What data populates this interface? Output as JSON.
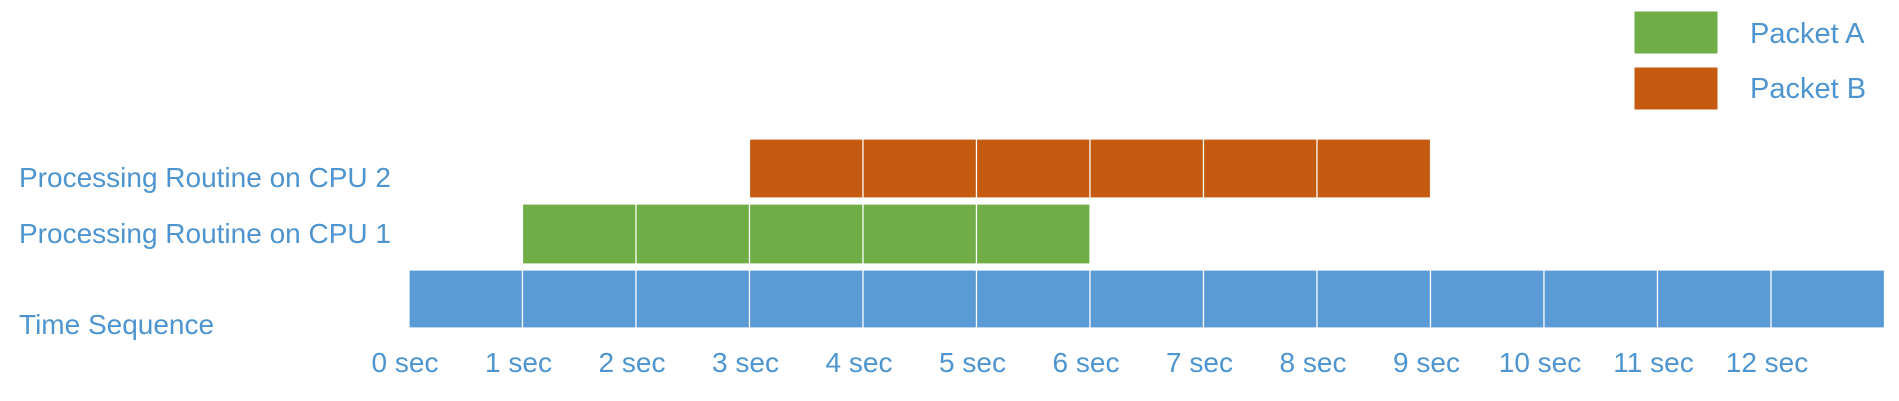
{
  "legend": [
    {
      "label": "Packet A",
      "color": "#70ad47"
    },
    {
      "label": "Packet B",
      "color": "#c55a11"
    }
  ],
  "rows": {
    "cpu2": "Processing Routine on CPU 2",
    "cpu1": "Processing Routine on CPU 1",
    "time": "Time Sequence"
  },
  "time_color": "#5b9bd5",
  "time_slots": 13,
  "tick_labels": [
    "0 sec",
    "1 sec",
    "2 sec",
    "3 sec",
    "4 sec",
    "5 sec",
    "6 sec",
    "7 sec",
    "8 sec",
    "9 sec",
    "10 sec",
    "11 sec",
    "12 sec"
  ],
  "packet_a": {
    "start_sec": 1,
    "end_sec": 6
  },
  "packet_b": {
    "start_sec": 3,
    "end_sec": 9
  }
}
